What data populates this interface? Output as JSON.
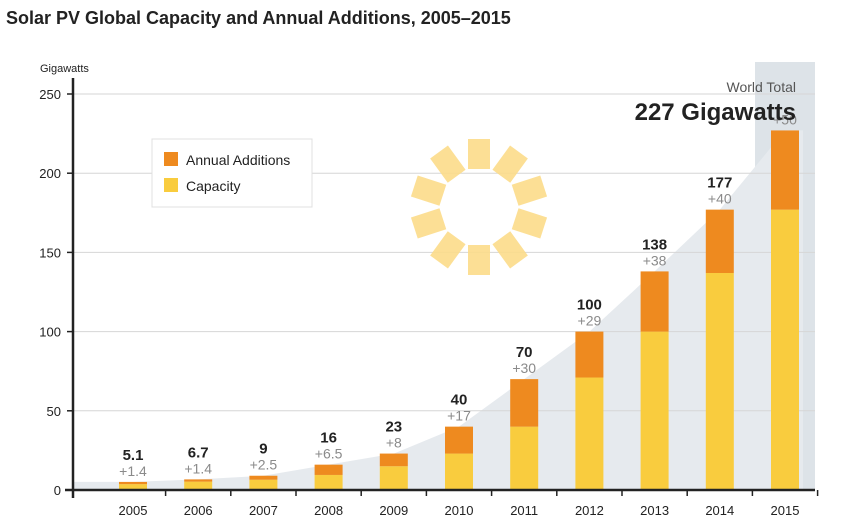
{
  "chart_data": {
    "type": "bar",
    "stacked": true,
    "title": "Solar PV Global Capacity and Annual Additions, 2005–2015",
    "ylabel": "Gigawatts",
    "xlabel": "",
    "ylim": [
      0,
      250
    ],
    "yticks": [
      0,
      50,
      100,
      150,
      200,
      250
    ],
    "grid": true,
    "legend_position": "top-left",
    "categories": [
      "2005",
      "2006",
      "2007",
      "2008",
      "2009",
      "2010",
      "2011",
      "2012",
      "2013",
      "2014",
      "2015"
    ],
    "series": [
      {
        "name": "Capacity",
        "color": "#f9cc3e",
        "values": [
          3.7,
          5.3,
          6.5,
          9.5,
          15,
          23,
          40,
          71,
          100,
          137,
          177
        ]
      },
      {
        "name": "Annual Additions",
        "color": "#ee8a1f",
        "values": [
          1.4,
          1.4,
          2.5,
          6.5,
          8,
          17,
          30,
          29,
          38,
          40,
          50
        ]
      }
    ],
    "total_labels": [
      "5.1",
      "6.7",
      "9",
      "16",
      "23",
      "40",
      "70",
      "100",
      "138",
      "177",
      ""
    ],
    "addition_labels": [
      "+1.4",
      "+1.4",
      "+2.5",
      "+6.5",
      "+8",
      "+17",
      "+30",
      "+29",
      "+38",
      "+40",
      "+50"
    ],
    "annotation": {
      "caption": "World Total",
      "value": "227 Gigawatts"
    },
    "highlight_category": "2015",
    "colors": {
      "highlight_band": "#dde3e8",
      "area": "#e6eaee",
      "sun": "#fcdc8a",
      "axis": "#222222"
    }
  }
}
